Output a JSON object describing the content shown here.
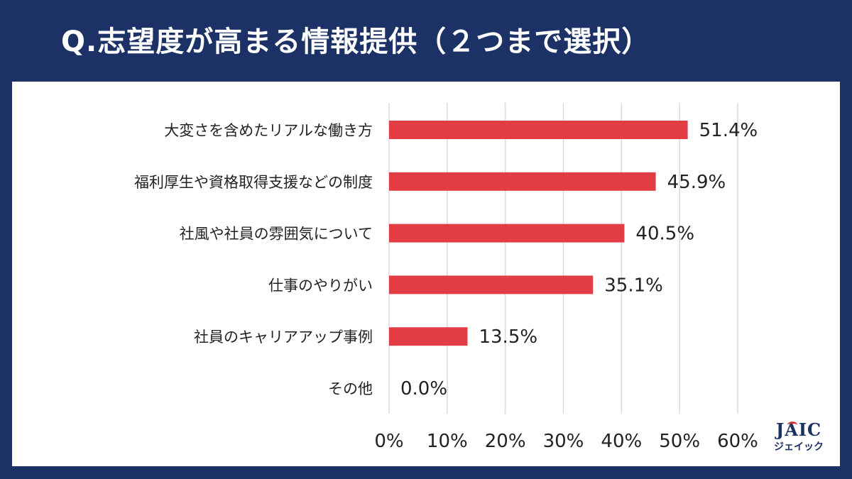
{
  "title": "Q.志望度が高まる情報提供（２つまで選択）",
  "logo": {
    "main": "JAIC",
    "sub": "ジェイック"
  },
  "colors": {
    "bar": "#e23c44",
    "background": "#1c3166",
    "grid": "#d9d9d9"
  },
  "chart_data": {
    "type": "bar",
    "orientation": "horizontal",
    "categories": [
      "大変さを含めたリアルな働き方",
      "福利厚生や資格取得支援などの制度",
      "社風や社員の雰囲気について",
      "仕事のやりがい",
      "社員のキャリアアップ事例",
      "その他"
    ],
    "values": [
      51.4,
      45.9,
      40.5,
      35.1,
      13.5,
      0.0
    ],
    "value_labels": [
      "51.4%",
      "45.9%",
      "40.5%",
      "35.1%",
      "13.5%",
      "0.0%"
    ],
    "xlim": [
      0,
      60
    ],
    "xticks": [
      0,
      10,
      20,
      30,
      40,
      50,
      60
    ],
    "xtick_labels": [
      "0%",
      "10%",
      "20%",
      "30%",
      "40%",
      "50%",
      "60%"
    ],
    "grid": true,
    "legend": "none"
  }
}
